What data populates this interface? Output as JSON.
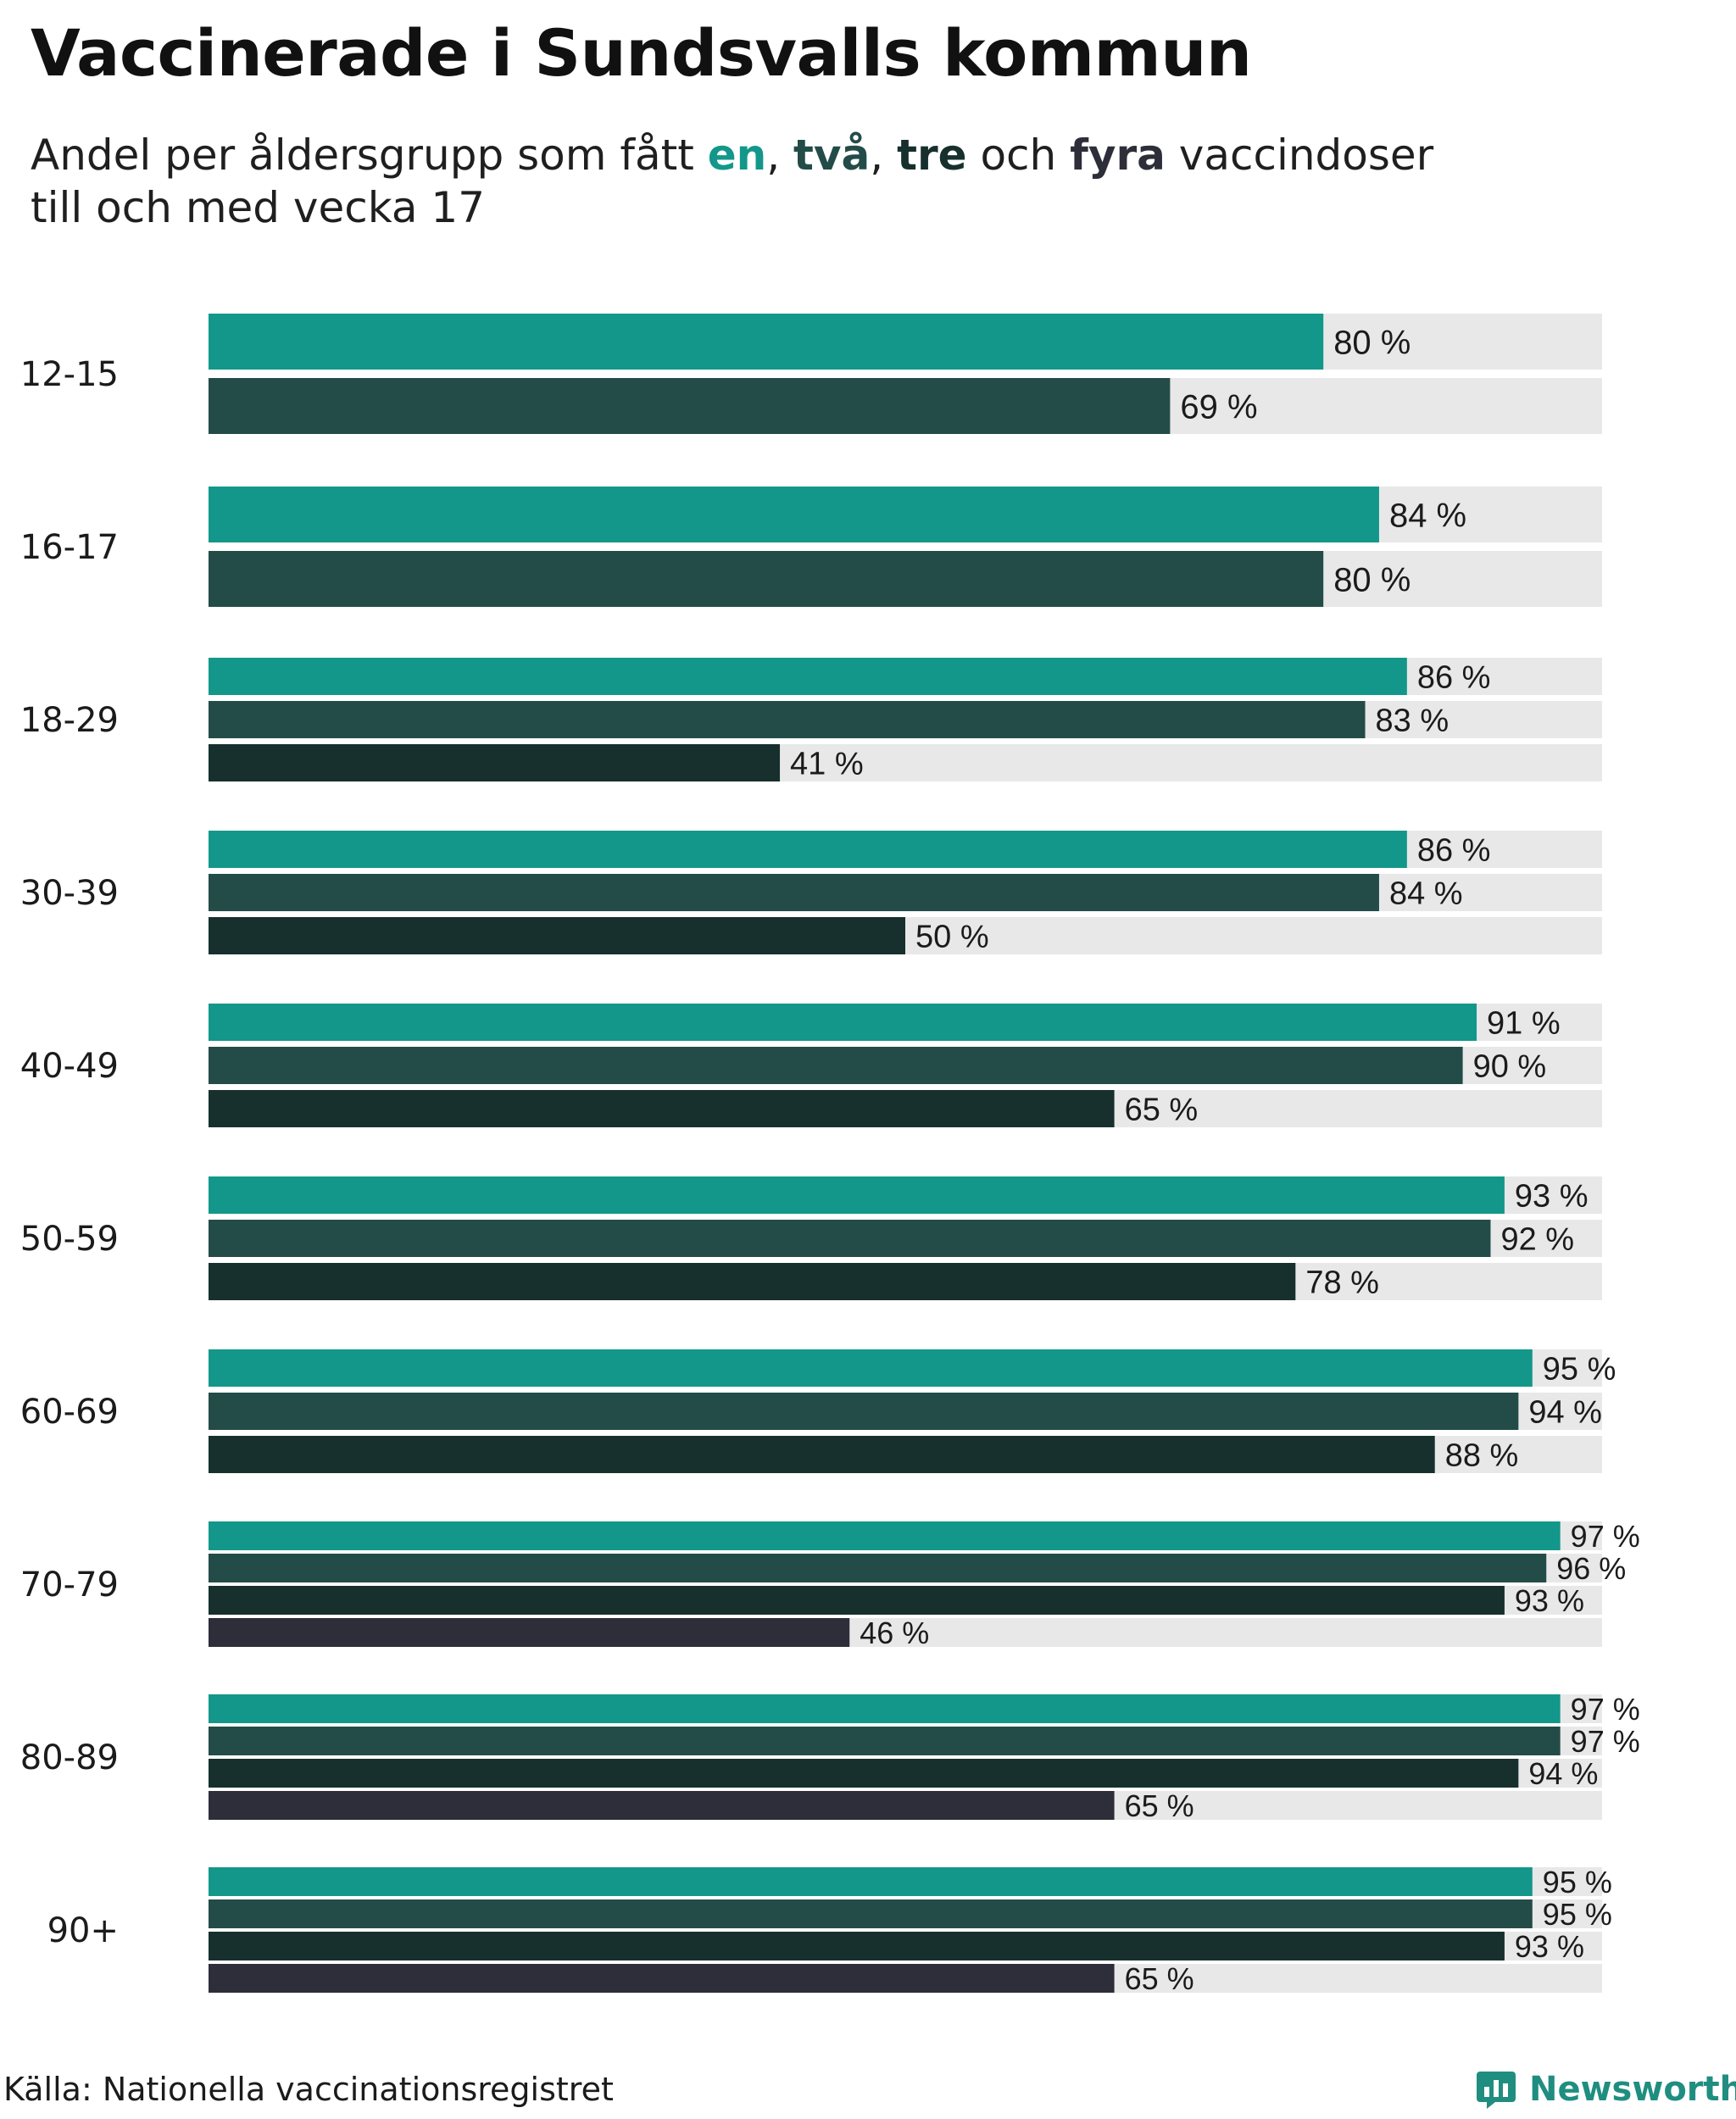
{
  "header": {
    "title": "Vaccinerade i Sundsvalls kommun",
    "subtitle_prefix": "Andel per åldersgrupp som fått ",
    "dose1": "en",
    "sep1": ", ",
    "dose2": "två",
    "sep2": ", ",
    "dose3": "tre",
    "sep3": " och ",
    "dose4": "fyra",
    "subtitle_suffix": " vaccindoser",
    "subtitle_line2": "till och med vecka 17"
  },
  "chart_data": {
    "type": "bar",
    "orientation": "horizontal",
    "title": "Vaccinerade i Sundsvalls kommun",
    "subtitle": "Andel per åldersgrupp som fått en, två, tre och fyra vaccindoser till och med vecka 17",
    "xlabel": "",
    "ylabel": "",
    "xlim": [
      0,
      100
    ],
    "unit": " %",
    "categories": [
      "12-15",
      "16-17",
      "18-29",
      "30-39",
      "40-49",
      "50-59",
      "60-69",
      "70-79",
      "80-89",
      "90+"
    ],
    "series": [
      {
        "name": "en",
        "color": "#13978a",
        "values": [
          80,
          84,
          86,
          86,
          91,
          93,
          95,
          97,
          97,
          95
        ]
      },
      {
        "name": "två",
        "color": "#234c48",
        "values": [
          69,
          80,
          83,
          84,
          90,
          92,
          94,
          96,
          97,
          95
        ]
      },
      {
        "name": "tre",
        "color": "#17302d",
        "values": [
          null,
          null,
          41,
          50,
          65,
          78,
          88,
          93,
          94,
          93
        ]
      },
      {
        "name": "fyra",
        "color": "#2e2e3a",
        "values": [
          null,
          null,
          null,
          null,
          null,
          null,
          null,
          46,
          65,
          65
        ]
      }
    ],
    "track_color": "#e8e8e8",
    "grid": false,
    "legend": "in-subtitle"
  },
  "footer": {
    "source": "Källa: Nationella vaccinationsregistret",
    "brand": "Newsworthy",
    "brand_color": "#1f8e80"
  }
}
